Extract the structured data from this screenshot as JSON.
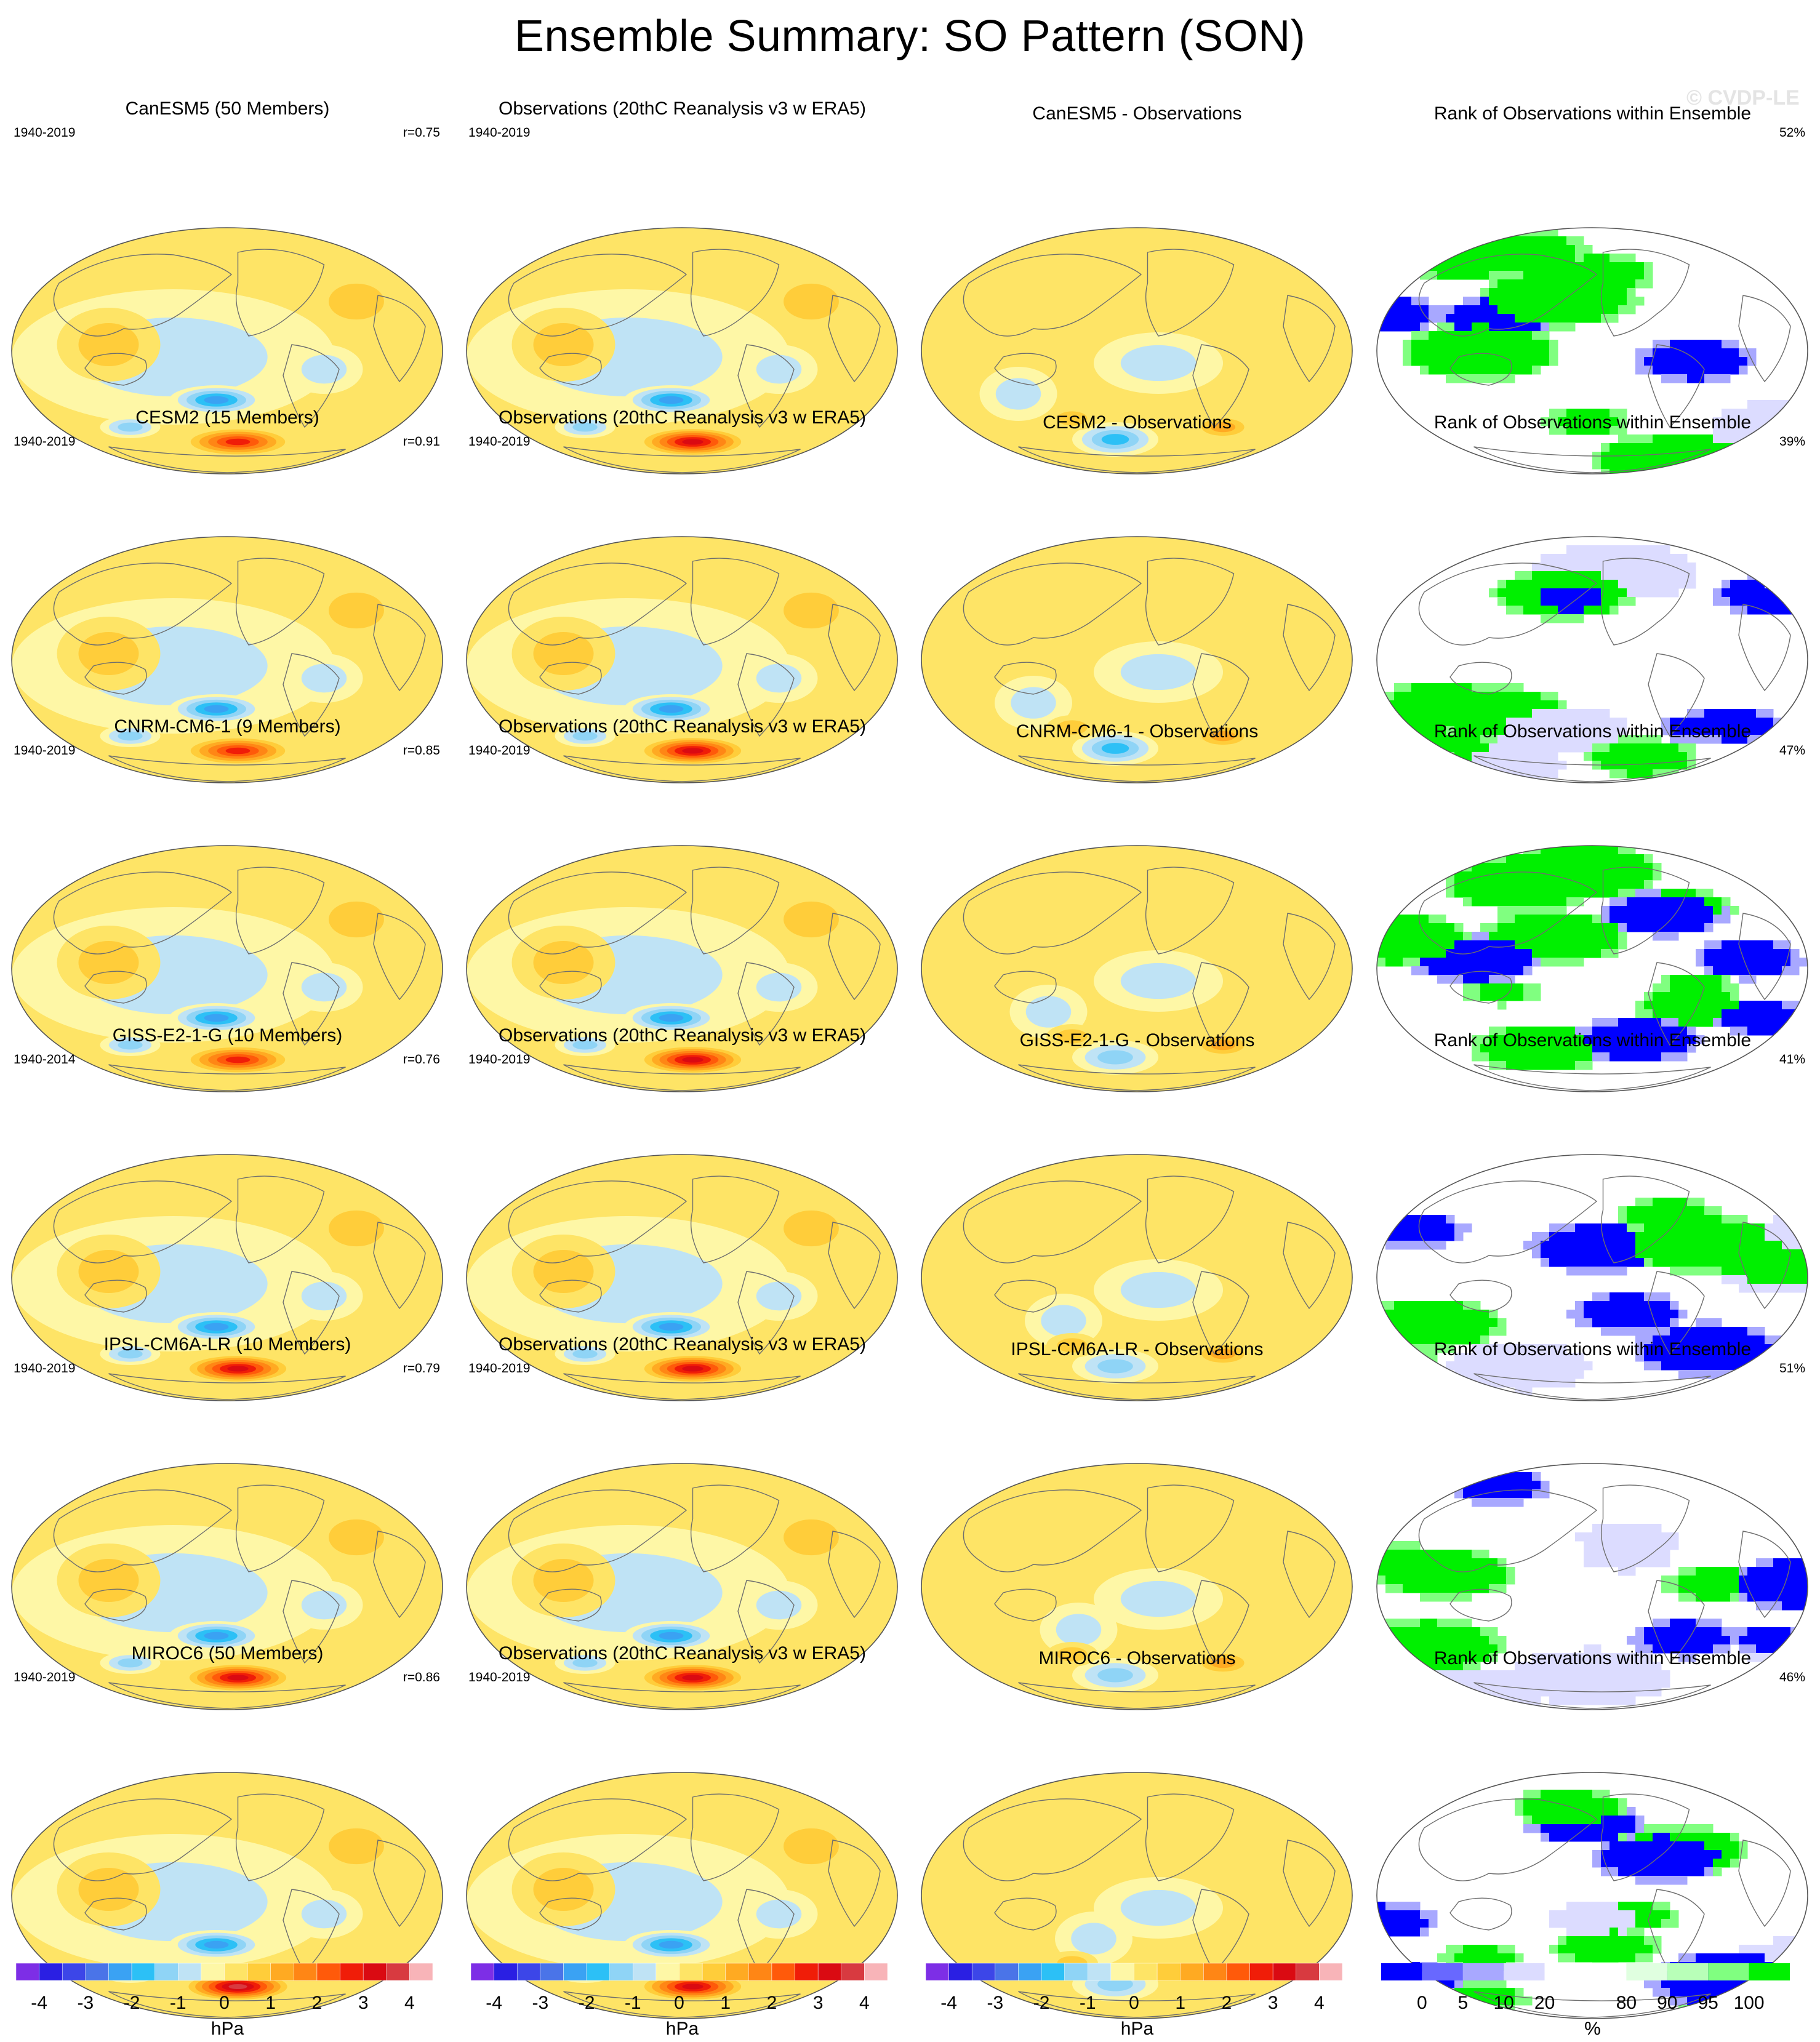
{
  "page_title": "Ensemble Summary: SO Pattern (SON)",
  "watermark": "© CVDP-LE",
  "colors": {
    "continent_outline": "#6e6e6e",
    "globe_border": "#555555",
    "pattern_levels": [
      "#7d2ee6",
      "#2a1fe3",
      "#3c46e8",
      "#4a74e8",
      "#3aa2f3",
      "#2cc0f6",
      "#8fd4f6",
      "#bfe3f5",
      "#fef7a6",
      "#fee466",
      "#ffcd3a",
      "#ffaa22",
      "#ff8615",
      "#ff5a0a",
      "#f01d08",
      "#da0a12",
      "#d83a40",
      "#f8b4b8"
    ],
    "rank_levels": [
      "#0000ff",
      "#6868ff",
      "#a8a8ff",
      "#dcdcff",
      "#ffffff",
      "#ffffff",
      "#e0ffe0",
      "#b8ffb8",
      "#80ff80",
      "#00f000"
    ]
  },
  "colorbars": {
    "pattern": {
      "unit": "hPa",
      "tick_labels": [
        "-4",
        "-3",
        "-2",
        "-1",
        "0",
        "1",
        "2",
        "3",
        "4"
      ],
      "tick_values": [
        -4,
        -3,
        -2,
        -1,
        0,
        1,
        2,
        3,
        4
      ],
      "levels": [
        -4,
        -3.5,
        -3,
        -2.5,
        -2,
        -1.5,
        -1,
        -0.5,
        0,
        0.5,
        1,
        1.5,
        2,
        2.5,
        3,
        3.5,
        4
      ]
    },
    "rank": {
      "unit": "%",
      "tick_labels": [
        "0",
        "5",
        "10",
        "20",
        "80",
        "90",
        "95",
        "100"
      ]
    }
  },
  "chart_data": {
    "type": "heatmap",
    "projection": "robinson",
    "layout": {
      "rows": 6,
      "columns": 4
    },
    "rows": [
      {
        "model": "CanESM5",
        "model_title": "CanESM5 (50 Members)",
        "model_period": "1940-2019",
        "pattern_correlation": "r=0.75",
        "obs_title": "Observations (20thC Reanalysis v3 w ERA5)",
        "obs_period": "1940-2019",
        "diff_title": "CanESM5 - Observations",
        "rank_title": "Rank of Observations within Ensemble",
        "rank_percent": "52%"
      },
      {
        "model": "CESM2",
        "model_title": "CESM2 (15 Members)",
        "model_period": "1940-2019",
        "pattern_correlation": "r=0.91",
        "obs_title": "Observations (20thC Reanalysis v3 w ERA5)",
        "obs_period": "1940-2019",
        "diff_title": "CESM2 - Observations",
        "rank_title": "Rank of Observations within Ensemble",
        "rank_percent": "39%"
      },
      {
        "model": "CNRM-CM6-1",
        "model_title": "CNRM-CM6-1 (9 Members)",
        "model_period": "1940-2019",
        "pattern_correlation": "r=0.85",
        "obs_title": "Observations (20thC Reanalysis v3 w ERA5)",
        "obs_period": "1940-2019",
        "diff_title": "CNRM-CM6-1 - Observations",
        "rank_title": "Rank of Observations within Ensemble",
        "rank_percent": "47%"
      },
      {
        "model": "GISS-E2-1-G",
        "model_title": "GISS-E2-1-G (10 Members)",
        "model_period": "1940-2014",
        "pattern_correlation": "r=0.76",
        "obs_title": "Observations (20thC Reanalysis v3 w ERA5)",
        "obs_period": "1940-2019",
        "diff_title": "GISS-E2-1-G - Observations",
        "rank_title": "Rank of Observations within Ensemble",
        "rank_percent": "41%"
      },
      {
        "model": "IPSL-CM6A-LR",
        "model_title": "IPSL-CM6A-LR (10 Members)",
        "model_period": "1940-2019",
        "pattern_correlation": "r=0.79",
        "obs_title": "Observations (20thC Reanalysis v3 w ERA5)",
        "obs_period": "1940-2019",
        "diff_title": "IPSL-CM6A-LR - Observations",
        "rank_title": "Rank of Observations within Ensemble",
        "rank_percent": "51%"
      },
      {
        "model": "MIROC6",
        "model_title": "MIROC6 (50 Members)",
        "model_period": "1940-2019",
        "pattern_correlation": "r=0.86",
        "obs_title": "Observations (20thC Reanalysis v3 w ERA5)",
        "obs_period": "1940-2019",
        "diff_title": "MIROC6 - Observations",
        "rank_title": "Rank of Observations within Ensemble",
        "rank_percent": "46%"
      }
    ]
  }
}
